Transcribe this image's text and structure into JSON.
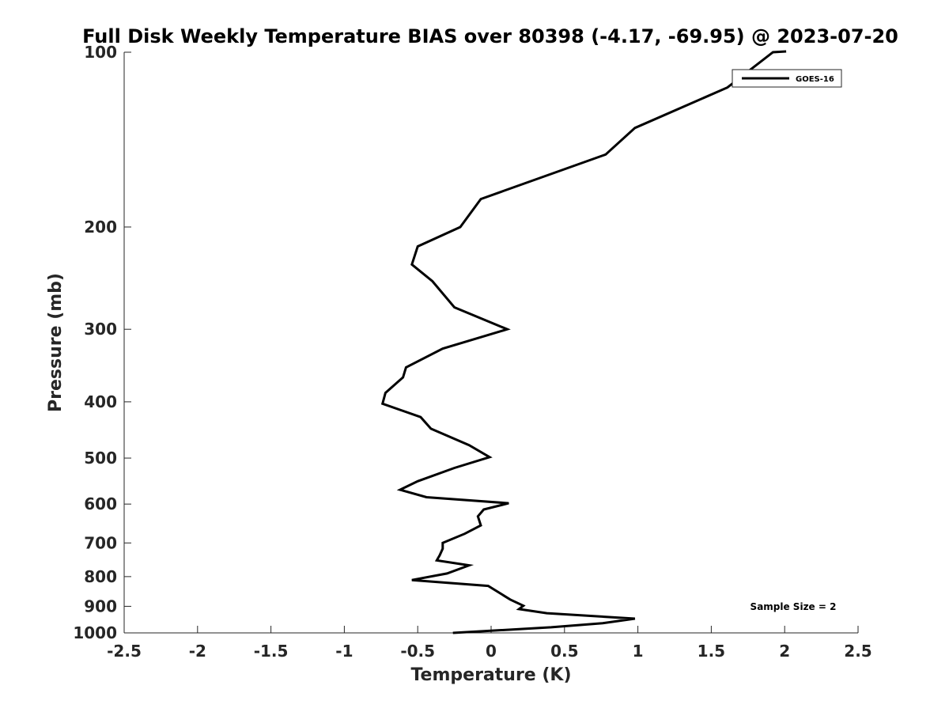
{
  "chart_data": {
    "type": "line",
    "title": "Full Disk Weekly Temperature BIAS over 80398 (-4.17, -69.95) @ 2023-07-20",
    "xlabel": "Temperature (K)",
    "ylabel": "Pressure (mb)",
    "xlim": [
      -2.5,
      2.5
    ],
    "ylim": [
      1000,
      100
    ],
    "yscale": "log",
    "grid": false,
    "xticks": [
      -2.5,
      -2,
      -1.5,
      -1,
      -0.5,
      0,
      0.5,
      1,
      1.5,
      2,
      2.5
    ],
    "xtick_labels": [
      "-2.5",
      "-2",
      "-1.5",
      "-1",
      "-0.5",
      "0",
      "0.5",
      "1",
      "1.5",
      "2",
      "2.5"
    ],
    "yticks": [
      100,
      200,
      300,
      400,
      500,
      600,
      700,
      800,
      900,
      1000
    ],
    "ytick_labels": [
      "100",
      "200",
      "300",
      "400",
      "500",
      "600",
      "700",
      "800",
      "900",
      "1000"
    ],
    "legend": {
      "position": "top-right",
      "entries": [
        "GOES-16"
      ]
    },
    "annotation": "Sample Size = 2",
    "colors": {
      "series": "#000000",
      "axes": "#262626"
    },
    "series": [
      {
        "name": "GOES-16",
        "points": [
          {
            "t": 1.92,
            "p": 100
          },
          {
            "t": 1.61,
            "p": 115
          },
          {
            "t": 0.98,
            "p": 135
          },
          {
            "t": 0.78,
            "p": 150
          },
          {
            "t": -0.07,
            "p": 179
          },
          {
            "t": -0.21,
            "p": 200
          },
          {
            "t": -0.5,
            "p": 216
          },
          {
            "t": -0.54,
            "p": 232
          },
          {
            "t": -0.4,
            "p": 248
          },
          {
            "t": -0.25,
            "p": 275
          },
          {
            "t": 0.11,
            "p": 300
          },
          {
            "t": -0.33,
            "p": 324
          },
          {
            "t": -0.58,
            "p": 349
          },
          {
            "t": -0.6,
            "p": 363
          },
          {
            "t": -0.72,
            "p": 386
          },
          {
            "t": -0.74,
            "p": 403
          },
          {
            "t": -0.48,
            "p": 425
          },
          {
            "t": -0.41,
            "p": 445
          },
          {
            "t": -0.15,
            "p": 475
          },
          {
            "t": -0.01,
            "p": 498
          },
          {
            "t": -0.25,
            "p": 520
          },
          {
            "t": -0.5,
            "p": 548
          },
          {
            "t": -0.62,
            "p": 567
          },
          {
            "t": -0.44,
            "p": 584
          },
          {
            "t": 0.12,
            "p": 598
          },
          {
            "t": -0.05,
            "p": 613
          },
          {
            "t": -0.09,
            "p": 630
          },
          {
            "t": -0.07,
            "p": 653
          },
          {
            "t": -0.18,
            "p": 675
          },
          {
            "t": -0.33,
            "p": 700
          },
          {
            "t": -0.33,
            "p": 716
          },
          {
            "t": -0.35,
            "p": 735
          },
          {
            "t": -0.37,
            "p": 750
          },
          {
            "t": -0.15,
            "p": 765
          },
          {
            "t": -0.3,
            "p": 790
          },
          {
            "t": -0.54,
            "p": 811
          },
          {
            "t": -0.02,
            "p": 830
          },
          {
            "t": 0.13,
            "p": 876
          },
          {
            "t": 0.22,
            "p": 898
          },
          {
            "t": 0.19,
            "p": 910
          },
          {
            "t": 0.38,
            "p": 925
          },
          {
            "t": 0.98,
            "p": 945
          },
          {
            "t": 0.76,
            "p": 962
          },
          {
            "t": 0.41,
            "p": 978
          },
          {
            "t": -0.26,
            "p": 1000
          }
        ]
      }
    ]
  }
}
